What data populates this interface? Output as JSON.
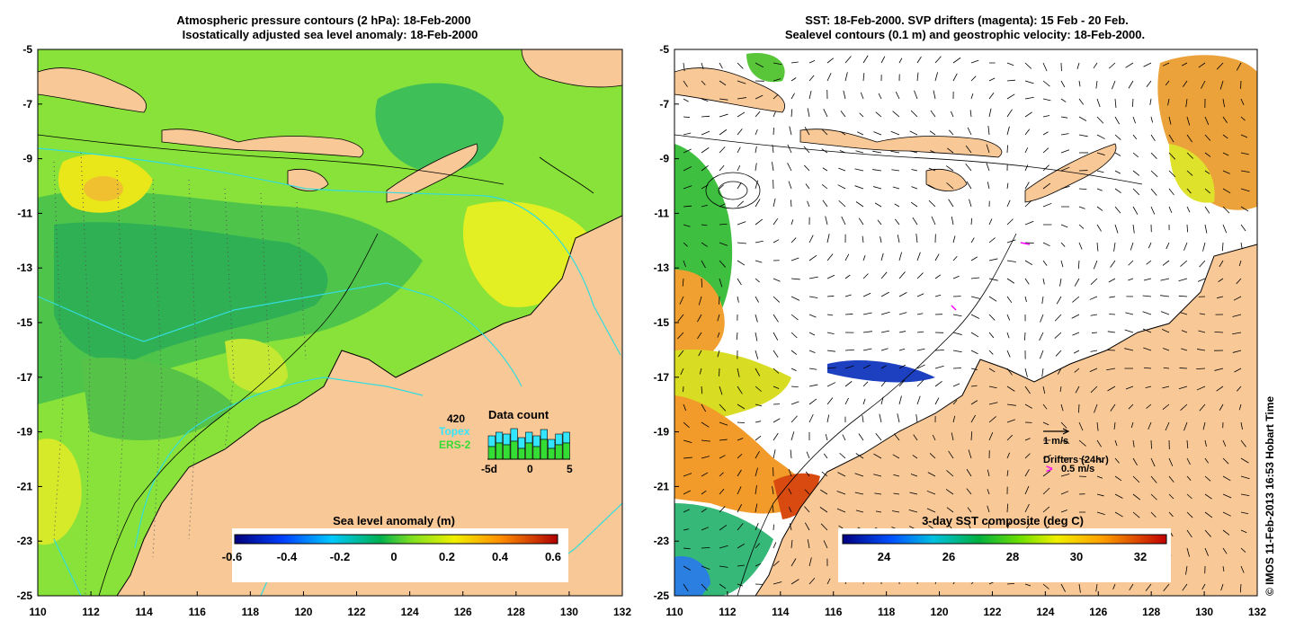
{
  "left_panel": {
    "title_line1": "Atmospheric pressure contours (2 hPa): 18-Feb-2000",
    "title_line2": "Isostatically adjusted sea level anomaly: 18-Feb-2000",
    "colorbar": {
      "title": "Sea level anomaly (m)",
      "tick_labels": [
        "-0.6",
        "-0.4",
        "-0.2",
        "0",
        "0.2",
        "0.4",
        "0.6"
      ]
    },
    "data_count": {
      "title": "Data count",
      "total": "420",
      "legend_topex": "Topex",
      "legend_ers2": "ERS-2",
      "x_labels": [
        "-5d",
        "0",
        "5"
      ],
      "topex_color": "#33e6ff",
      "ers2_color": "#33dd33"
    }
  },
  "right_panel": {
    "title_line1": "SST: 18-Feb-2000. SVP drifters (magenta): 15 Feb - 20 Feb.",
    "title_line2": "Sealevel contours (0.1 m) and geostrophic velocity: 18-Feb-2000.",
    "colorbar": {
      "title": "3-day SST composite (deg C)",
      "tick_labels": [
        "24",
        "26",
        "28",
        "30",
        "32"
      ]
    },
    "velocity_legend": "1 m/s",
    "drifters_title": "Drifters (24hr)",
    "drifters_speed": "0.5 m/s",
    "drifters_symbol": ">"
  },
  "axes": {
    "x_tick_labels": [
      "110",
      "112",
      "114",
      "116",
      "118",
      "120",
      "122",
      "124",
      "126",
      "128",
      "130",
      "132"
    ],
    "y_tick_labels": [
      "-5",
      "-7",
      "-9",
      "-11",
      "-13",
      "-15",
      "-17",
      "-19",
      "-21",
      "-23",
      "-25"
    ]
  },
  "credit": "© IMOS 11-Feb-2013 16:53 Hobart Time",
  "colors": {
    "land": "#f9c897",
    "contour_cyan": "#33dddd",
    "velocity_arrow": "#000000",
    "drifter_magenta": "#ff00ff"
  }
}
